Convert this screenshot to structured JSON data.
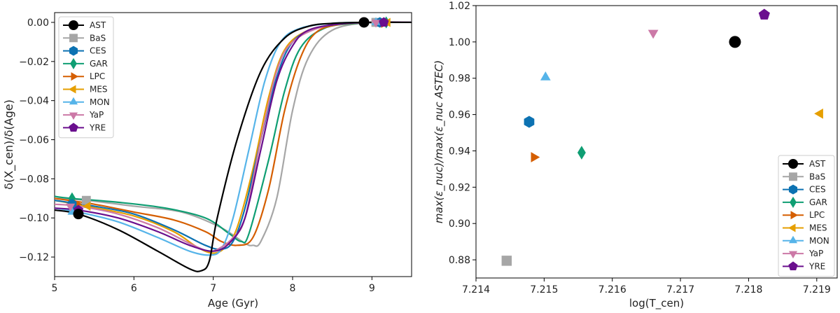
{
  "series_styles": [
    {
      "name": "AST",
      "color": "#000000",
      "marker": "circle"
    },
    {
      "name": "BaS",
      "color": "#a6a6a6",
      "marker": "square"
    },
    {
      "name": "CES",
      "color": "#0c72b2",
      "marker": "hexagon"
    },
    {
      "name": "GAR",
      "color": "#0f9e73",
      "marker": "diamond"
    },
    {
      "name": "LPC",
      "color": "#d55e00",
      "marker": "triangle-right"
    },
    {
      "name": "MES",
      "color": "#e69f00",
      "marker": "triangle-left"
    },
    {
      "name": "MON",
      "color": "#56b4e9",
      "marker": "triangle-up"
    },
    {
      "name": "YaP",
      "color": "#cc79a7",
      "marker": "triangle-down"
    },
    {
      "name": "YRE",
      "color": "#6a0f8e",
      "marker": "pentagon"
    }
  ],
  "chart_data": [
    {
      "type": "line",
      "title": "",
      "xlabel": "Age (Gyr)",
      "ylabel": "δ(X_cen)/δ(Age)",
      "xlim": [
        5,
        9.5
      ],
      "ylim": [
        -0.13,
        0.005
      ],
      "xticks": [
        "5",
        "6",
        "7",
        "8",
        "9"
      ],
      "yticks": [
        "0.00",
        "−0.02",
        "−0.04",
        "−0.06",
        "−0.08",
        "−0.10",
        "−0.12"
      ],
      "legend_position": "top-left",
      "series": [
        {
          "name": "AST",
          "x": [
            5.0,
            5.3,
            5.8,
            6.3,
            6.7,
            6.85,
            6.95,
            7.05,
            7.3,
            7.6,
            7.9,
            8.2,
            8.5,
            8.9,
            9.5
          ],
          "y": [
            -0.096,
            -0.098,
            -0.106,
            -0.117,
            -0.126,
            -0.127,
            -0.122,
            -0.1,
            -0.06,
            -0.025,
            -0.008,
            -0.002,
            -0.0005,
            0.0,
            0.0
          ],
          "markers": [
            {
              "x": 5.3,
              "y": -0.098
            },
            {
              "x": 8.9,
              "y": 0.0
            }
          ]
        },
        {
          "name": "BaS",
          "x": [
            5.0,
            5.4,
            6.0,
            6.6,
            7.1,
            7.4,
            7.5,
            7.6,
            7.8,
            8.0,
            8.2,
            8.5,
            9.0,
            9.5
          ],
          "y": [
            -0.09,
            -0.091,
            -0.094,
            -0.097,
            -0.105,
            -0.113,
            -0.114,
            -0.112,
            -0.09,
            -0.045,
            -0.018,
            -0.004,
            0.0,
            0.0
          ],
          "markers": [
            {
              "x": 5.4,
              "y": -0.091
            },
            {
              "x": 9.05,
              "y": 0.0
            }
          ]
        },
        {
          "name": "CES",
          "x": [
            5.0,
            5.5,
            6.0,
            6.5,
            6.9,
            7.1,
            7.25,
            7.4,
            7.6,
            7.8,
            8.0,
            8.3,
            8.7,
            9.1,
            9.5
          ],
          "y": [
            -0.091,
            -0.094,
            -0.098,
            -0.106,
            -0.114,
            -0.116,
            -0.112,
            -0.095,
            -0.06,
            -0.028,
            -0.01,
            -0.003,
            -0.0005,
            0.0,
            0.0
          ],
          "markers": [
            {
              "x": 5.22,
              "y": -0.093
            },
            {
              "x": 9.1,
              "y": 0.0
            }
          ]
        },
        {
          "name": "GAR",
          "x": [
            5.0,
            5.2,
            5.8,
            6.4,
            6.9,
            7.2,
            7.35,
            7.45,
            7.7,
            7.9,
            8.1,
            8.4,
            8.8,
            9.2,
            9.5
          ],
          "y": [
            -0.089,
            -0.09,
            -0.092,
            -0.095,
            -0.1,
            -0.108,
            -0.112,
            -0.108,
            -0.07,
            -0.035,
            -0.013,
            -0.003,
            -0.0005,
            0.0,
            0.0
          ],
          "markers": [
            {
              "x": 5.22,
              "y": -0.09
            },
            {
              "x": 9.18,
              "y": 0.0
            }
          ]
        },
        {
          "name": "LPC",
          "x": [
            5.0,
            5.5,
            6.0,
            6.5,
            6.9,
            7.1,
            7.3,
            7.5,
            7.7,
            7.9,
            8.1,
            8.3,
            8.6,
            9.0,
            9.5
          ],
          "y": [
            -0.09,
            -0.093,
            -0.097,
            -0.101,
            -0.107,
            -0.112,
            -0.114,
            -0.11,
            -0.085,
            -0.045,
            -0.018,
            -0.005,
            -0.001,
            0.0,
            0.0
          ],
          "markers": [
            {
              "x": 5.28,
              "y": -0.093
            },
            {
              "x": 9.15,
              "y": -0.0005
            }
          ]
        },
        {
          "name": "MES",
          "x": [
            5.0,
            5.4,
            6.0,
            6.5,
            6.8,
            7.0,
            7.15,
            7.3,
            7.5,
            7.7,
            7.9,
            8.2,
            8.6,
            9.0,
            9.5
          ],
          "y": [
            -0.091,
            -0.094,
            -0.099,
            -0.107,
            -0.115,
            -0.118,
            -0.115,
            -0.105,
            -0.075,
            -0.038,
            -0.014,
            -0.004,
            -0.001,
            0.0,
            0.0
          ],
          "markers": [
            {
              "x": 5.42,
              "y": -0.094
            },
            {
              "x": 9.2,
              "y": 0.0
            }
          ]
        },
        {
          "name": "MON",
          "x": [
            5.0,
            5.3,
            5.8,
            6.3,
            6.7,
            6.95,
            7.1,
            7.25,
            7.45,
            7.65,
            7.85,
            8.1,
            8.5,
            9.0,
            9.5
          ],
          "y": [
            -0.095,
            -0.097,
            -0.102,
            -0.11,
            -0.117,
            -0.119,
            -0.116,
            -0.1,
            -0.065,
            -0.03,
            -0.01,
            -0.003,
            -0.0005,
            0.0,
            0.0
          ],
          "markers": [
            {
              "x": 5.22,
              "y": -0.097
            },
            {
              "x": 9.05,
              "y": 0.0
            }
          ]
        },
        {
          "name": "YaP",
          "x": [
            5.0,
            5.3,
            5.8,
            6.3,
            6.7,
            6.95,
            7.1,
            7.25,
            7.4,
            7.6,
            7.8,
            8.0,
            8.4,
            8.9,
            9.5
          ],
          "y": [
            -0.093,
            -0.094,
            -0.098,
            -0.105,
            -0.113,
            -0.117,
            -0.115,
            -0.11,
            -0.1,
            -0.06,
            -0.025,
            -0.01,
            -0.002,
            0.0,
            0.0
          ],
          "markers": [
            {
              "x": 5.2,
              "y": -0.094
            },
            {
              "x": 9.05,
              "y": 0.0
            }
          ]
        },
        {
          "name": "YRE",
          "x": [
            5.0,
            5.3,
            5.8,
            6.3,
            6.7,
            7.0,
            7.2,
            7.4,
            7.6,
            7.8,
            8.0,
            8.2,
            8.6,
            9.0,
            9.5
          ],
          "y": [
            -0.095,
            -0.096,
            -0.1,
            -0.107,
            -0.114,
            -0.117,
            -0.113,
            -0.1,
            -0.065,
            -0.03,
            -0.012,
            -0.004,
            -0.0008,
            0.0,
            0.0
          ],
          "markers": [
            {
              "x": 5.3,
              "y": -0.096
            },
            {
              "x": 9.15,
              "y": 0.0
            }
          ]
        }
      ]
    },
    {
      "type": "scatter",
      "title": "",
      "xlabel": "log(T_cen)",
      "ylabel": "max(ε_nuc)/max(ε_nuc ASTEC)",
      "xlim": [
        7.214,
        7.2193
      ],
      "ylim": [
        0.87,
        1.02
      ],
      "xticks": [
        "7.214",
        "7.215",
        "7.216",
        "7.217",
        "7.218",
        "7.219"
      ],
      "yticks": [
        "0.88",
        "0.90",
        "0.92",
        "0.94",
        "0.96",
        "0.98",
        "1.00",
        "1.02"
      ],
      "legend_position": "bottom-right",
      "points": [
        {
          "name": "AST",
          "x": 7.2178,
          "y": 1.0
        },
        {
          "name": "BaS",
          "x": 7.21445,
          "y": 0.8795
        },
        {
          "name": "CES",
          "x": 7.21478,
          "y": 0.956
        },
        {
          "name": "GAR",
          "x": 7.21555,
          "y": 0.939
        },
        {
          "name": "LPC",
          "x": 7.21485,
          "y": 0.9365
        },
        {
          "name": "MES",
          "x": 7.21905,
          "y": 0.9605
        },
        {
          "name": "MON",
          "x": 7.21502,
          "y": 0.9805
        },
        {
          "name": "YaP",
          "x": 7.2166,
          "y": 1.005
        },
        {
          "name": "YRE",
          "x": 7.21823,
          "y": 1.015
        }
      ]
    }
  ]
}
